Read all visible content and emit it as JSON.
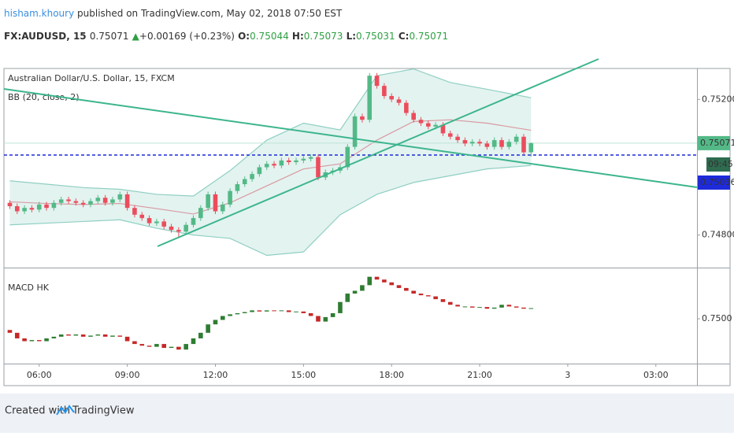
{
  "header": {
    "author": "hisham.khoury",
    "published": "published on TradingView.com, May 02, 2018 07:50 EST",
    "symbol": "FX:AUDUSD, 15",
    "last": "0.75071",
    "arrow": "▲",
    "change": "+0.00169 (+0.23%)",
    "ohlc": [
      {
        "key": "O:",
        "value": "0.75044"
      },
      {
        "key": "H:",
        "value": "0.75073"
      },
      {
        "key": "L:",
        "value": "0.75031"
      },
      {
        "key": "C:",
        "value": "0.75071"
      }
    ]
  },
  "footer": {
    "created": "Created with",
    "brand": "TradingView"
  },
  "chart_data": [
    {
      "type": "candlestick",
      "title": "Australian Dollar/U.S. Dollar, 15, FXCM",
      "indicator": "BB (20, close, 2)",
      "up_color": "#53b987",
      "down_color": "#eb4d5c",
      "open": [
        0.74895,
        0.74885,
        0.7487,
        0.7488,
        0.74875,
        0.7489,
        0.7488,
        0.74895,
        0.74905,
        0.749,
        0.74895,
        0.7489,
        0.749,
        0.7491,
        0.74895,
        0.74905,
        0.7492,
        0.7488,
        0.7486,
        0.7485,
        0.74835,
        0.7484,
        0.74825,
        0.74815,
        0.7481,
        0.7483,
        0.7485,
        0.7488,
        0.7492,
        0.7487,
        0.7489,
        0.7493,
        0.7495,
        0.74965,
        0.7498,
        0.75,
        0.7501,
        0.75005,
        0.7502,
        0.75015,
        0.7502,
        0.75025,
        0.7503,
        0.7497,
        0.74985,
        0.7499,
        0.75,
        0.7506,
        0.7515,
        0.7514,
        0.7527,
        0.7524,
        0.7521,
        0.752,
        0.7519,
        0.7516,
        0.7514,
        0.7513,
        0.7512,
        0.75125,
        0.751,
        0.7509,
        0.7508,
        0.7507,
        0.75075,
        0.7507,
        0.7506,
        0.7508,
        0.7506,
        0.75075,
        0.7509,
        0.75044
      ],
      "high": [
        0.74903,
        0.74893,
        0.74888,
        0.74888,
        0.74898,
        0.74898,
        0.74903,
        0.74913,
        0.74913,
        0.74908,
        0.74903,
        0.74908,
        0.74918,
        0.74918,
        0.74913,
        0.74928,
        0.74928,
        0.74888,
        0.74868,
        0.74858,
        0.74848,
        0.74848,
        0.74833,
        0.74823,
        0.74838,
        0.74858,
        0.74888,
        0.74928,
        0.74928,
        0.74898,
        0.74938,
        0.74958,
        0.74973,
        0.74988,
        0.75008,
        0.75018,
        0.75018,
        0.75028,
        0.75028,
        0.75028,
        0.75033,
        0.75038,
        0.75038,
        0.74993,
        0.74998,
        0.75008,
        0.75068,
        0.75158,
        0.75158,
        0.75278,
        0.75278,
        0.75248,
        0.75218,
        0.75208,
        0.75198,
        0.75168,
        0.75148,
        0.75138,
        0.75133,
        0.75133,
        0.75108,
        0.75098,
        0.75088,
        0.75083,
        0.75083,
        0.75078,
        0.75088,
        0.75088,
        0.75083,
        0.75098,
        0.75098,
        0.75073
      ],
      "low": [
        0.74877,
        0.74862,
        0.74862,
        0.74867,
        0.74867,
        0.74872,
        0.74872,
        0.74887,
        0.74892,
        0.74887,
        0.74882,
        0.74882,
        0.74892,
        0.74887,
        0.74887,
        0.74897,
        0.74872,
        0.74852,
        0.74842,
        0.74827,
        0.74827,
        0.74817,
        0.74807,
        0.74795,
        0.74802,
        0.74822,
        0.74842,
        0.74872,
        0.74862,
        0.74862,
        0.74882,
        0.74922,
        0.74942,
        0.74957,
        0.74972,
        0.74992,
        0.74997,
        0.74997,
        0.75007,
        0.75007,
        0.75012,
        0.75017,
        0.74962,
        0.74962,
        0.74977,
        0.74982,
        0.74992,
        0.75052,
        0.75132,
        0.75132,
        0.75232,
        0.75202,
        0.75192,
        0.75182,
        0.75152,
        0.75132,
        0.75122,
        0.75112,
        0.75112,
        0.75092,
        0.75082,
        0.75072,
        0.75062,
        0.75062,
        0.75062,
        0.75052,
        0.75052,
        0.75052,
        0.75052,
        0.75067,
        0.75036,
        0.75031
      ],
      "close": [
        0.74885,
        0.7487,
        0.7488,
        0.74875,
        0.7489,
        0.7488,
        0.74895,
        0.74905,
        0.749,
        0.74895,
        0.7489,
        0.749,
        0.7491,
        0.74895,
        0.74905,
        0.7492,
        0.7488,
        0.7486,
        0.7485,
        0.74835,
        0.7484,
        0.74825,
        0.74815,
        0.7481,
        0.7483,
        0.7485,
        0.7488,
        0.7492,
        0.7487,
        0.7489,
        0.7493,
        0.7495,
        0.74965,
        0.7498,
        0.75,
        0.7501,
        0.75005,
        0.7502,
        0.75015,
        0.7502,
        0.75025,
        0.7503,
        0.7497,
        0.74985,
        0.7499,
        0.75,
        0.7506,
        0.7515,
        0.7514,
        0.7527,
        0.7524,
        0.7521,
        0.752,
        0.7519,
        0.7516,
        0.7514,
        0.7513,
        0.7512,
        0.75125,
        0.751,
        0.7509,
        0.7508,
        0.7507,
        0.75075,
        0.7507,
        0.7506,
        0.7508,
        0.7506,
        0.75075,
        0.7509,
        0.75044,
        0.75071
      ],
      "band_x": [
        0,
        5,
        10,
        15,
        20,
        25,
        30,
        35,
        40,
        45,
        50,
        55,
        60,
        65,
        71
      ],
      "band_upper": [
        0.7496,
        0.7495,
        0.7494,
        0.74935,
        0.7492,
        0.74915,
        0.7499,
        0.7508,
        0.7513,
        0.7511,
        0.7527,
        0.7529,
        0.7525,
        0.7523,
        0.75205
      ],
      "band_basis": [
        0.74898,
        0.74893,
        0.7489,
        0.74893,
        0.74878,
        0.74862,
        0.74895,
        0.74945,
        0.74995,
        0.7501,
        0.7508,
        0.75135,
        0.7514,
        0.7513,
        0.75109
      ],
      "band_lower": [
        0.7483,
        0.74835,
        0.7484,
        0.74845,
        0.7482,
        0.748,
        0.7479,
        0.7474,
        0.7475,
        0.7486,
        0.7492,
        0.74955,
        0.74975,
        0.74995,
        0.75005
      ],
      "band_color": "#8fcfc2",
      "basis_color": "#d89aa2",
      "last_price": 0.75071,
      "line_price": 0.75036,
      "countdown": "09:45",
      "ylim": [
        0.74704,
        0.75289
      ],
      "yticks": [
        {
          "value": 0.748,
          "label": "0.74800"
        },
        {
          "value": 0.752,
          "label": "0.75200"
        }
      ],
      "xlim": [
        -0.8,
        93.6
      ],
      "xticks": [
        {
          "value": 4,
          "label": "06:00"
        },
        {
          "value": 16,
          "label": "09:00"
        },
        {
          "value": 28,
          "label": "12:00"
        },
        {
          "value": 40,
          "label": "15:00"
        },
        {
          "value": 52,
          "label": "18:00"
        },
        {
          "value": 64,
          "label": "21:00"
        },
        {
          "value": 76,
          "label": "3"
        },
        {
          "value": 88,
          "label": "03:00"
        }
      ]
    },
    {
      "type": "candlestick",
      "title": "MACD HK",
      "up_color": "#2e7d32",
      "down_color": "#c62828",
      "open": [
        0.7498,
        0.74975,
        0.74965,
        0.7496,
        0.74962,
        0.7496,
        0.74965,
        0.74968,
        0.74972,
        0.7497,
        0.74972,
        0.74968,
        0.7497,
        0.74972,
        0.74968,
        0.7497,
        0.74968,
        0.7496,
        0.74955,
        0.74952,
        0.7495,
        0.74955,
        0.74948,
        0.7495,
        0.74945,
        0.74955,
        0.74965,
        0.74975,
        0.7499,
        0.74998,
        0.75005,
        0.75008,
        0.7501,
        0.75012,
        0.75015,
        0.75013,
        0.75015,
        0.75014,
        0.75015,
        0.75012,
        0.75013,
        0.7501,
        0.75005,
        0.74995,
        0.75003,
        0.7501,
        0.7503,
        0.75045,
        0.7505,
        0.7506,
        0.75075,
        0.7507,
        0.75065,
        0.7506,
        0.75055,
        0.7505,
        0.75045,
        0.75042,
        0.7504,
        0.75035,
        0.7503,
        0.75025,
        0.75022,
        0.75022,
        0.7502,
        0.75021,
        0.75018,
        0.7502,
        0.75025,
        0.75022,
        0.7502,
        0.75018
      ],
      "close": [
        0.74975,
        0.74965,
        0.7496,
        0.74962,
        0.7496,
        0.74965,
        0.74968,
        0.74972,
        0.7497,
        0.74972,
        0.74968,
        0.7497,
        0.74972,
        0.74968,
        0.7497,
        0.74968,
        0.7496,
        0.74955,
        0.74952,
        0.7495,
        0.74955,
        0.74948,
        0.7495,
        0.74945,
        0.74955,
        0.74965,
        0.74975,
        0.7499,
        0.74998,
        0.75005,
        0.75008,
        0.7501,
        0.75012,
        0.75015,
        0.75013,
        0.75015,
        0.75014,
        0.75015,
        0.75012,
        0.75013,
        0.7501,
        0.75005,
        0.74995,
        0.75003,
        0.7501,
        0.7503,
        0.75045,
        0.7505,
        0.7506,
        0.75075,
        0.7507,
        0.75065,
        0.7506,
        0.75055,
        0.7505,
        0.75045,
        0.75042,
        0.7504,
        0.75035,
        0.7503,
        0.75025,
        0.75022,
        0.75022,
        0.7502,
        0.75021,
        0.75018,
        0.7502,
        0.75025,
        0.75022,
        0.7502,
        0.75018,
        0.75019
      ],
      "ylim": [
        0.7492,
        0.7509
      ],
      "yticks": [
        {
          "value": 0.75,
          "label": "0.7500"
        }
      ]
    }
  ]
}
